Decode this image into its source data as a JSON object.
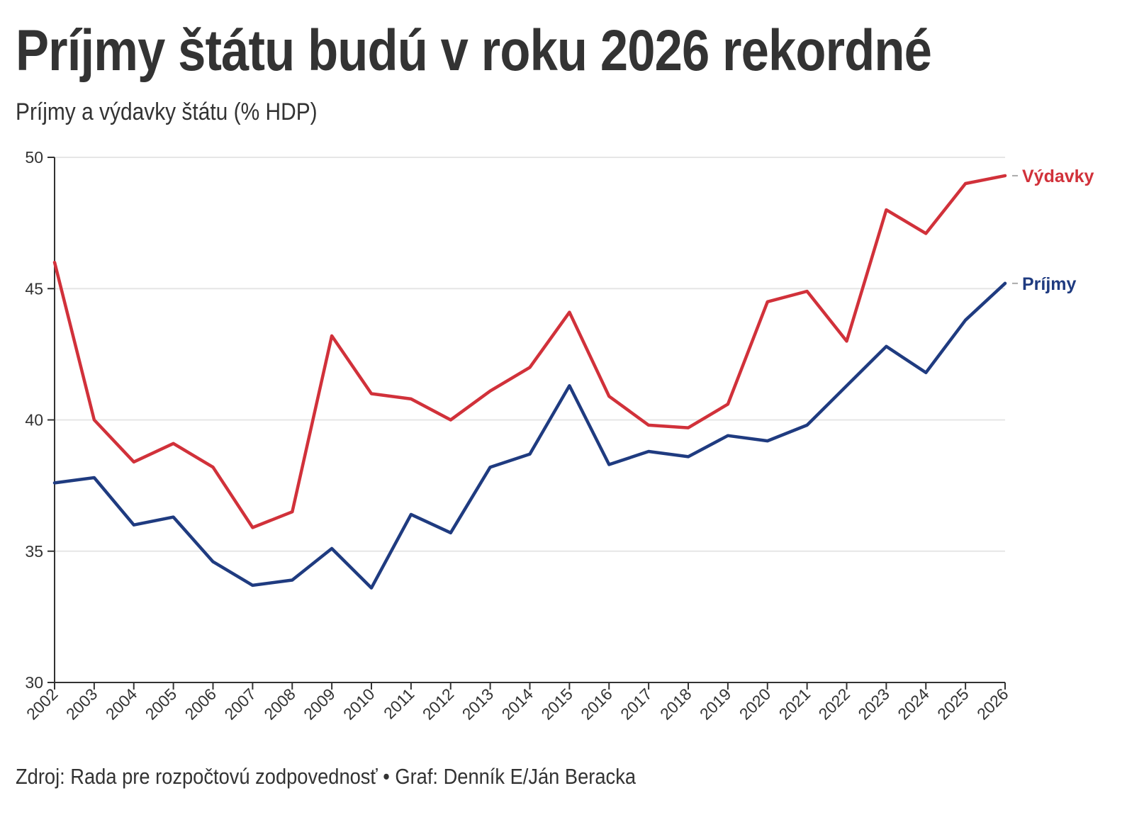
{
  "header": {
    "title": "Príjmy štátu budú v roku 2026 rekordné",
    "subtitle": "Príjmy a výdavky štátu (% HDP)"
  },
  "footer": {
    "source": "Zdroj: Rada pre rozpočtovú zodpovednosť • Graf: Denník E/Ján Beracka"
  },
  "colors": {
    "vydavky": "#d1313a",
    "prijmy": "#1f3b80",
    "grid": "#e6e6e6",
    "axis": "#333333"
  },
  "chart_data": {
    "type": "line",
    "title": "Príjmy štátu budú v roku 2026 rekordné",
    "subtitle": "Príjmy a výdavky štátu (% HDP)",
    "xlabel": "",
    "ylabel": "",
    "ylim": [
      30,
      50
    ],
    "yticks": [
      30,
      35,
      40,
      45,
      50
    ],
    "grid": true,
    "legend": "direct labels at line ends (right)",
    "x": [
      "2002",
      "2003",
      "2004",
      "2005",
      "2006",
      "2007",
      "2008",
      "2009",
      "2010",
      "2011",
      "2012",
      "2013",
      "2014",
      "2015",
      "2016",
      "2017",
      "2018",
      "2019",
      "2020",
      "2021",
      "2022",
      "2023",
      "2024",
      "2025",
      "2026"
    ],
    "series": [
      {
        "name": "Výdavky",
        "color": "#d1313a",
        "values": [
          46.0,
          40.0,
          38.4,
          39.1,
          38.2,
          35.9,
          36.5,
          43.2,
          41.0,
          40.8,
          40.0,
          41.1,
          42.0,
          44.1,
          40.9,
          39.8,
          39.7,
          40.6,
          44.5,
          44.9,
          43.0,
          48.0,
          47.1,
          49.0,
          49.3
        ]
      },
      {
        "name": "Príjmy",
        "color": "#1f3b80",
        "values": [
          37.6,
          37.8,
          36.0,
          36.3,
          34.6,
          33.7,
          33.9,
          35.1,
          33.6,
          36.4,
          35.7,
          38.2,
          38.7,
          41.3,
          38.3,
          38.8,
          38.6,
          39.4,
          39.2,
          39.8,
          41.3,
          42.8,
          41.8,
          43.8,
          45.2
        ]
      }
    ]
  }
}
